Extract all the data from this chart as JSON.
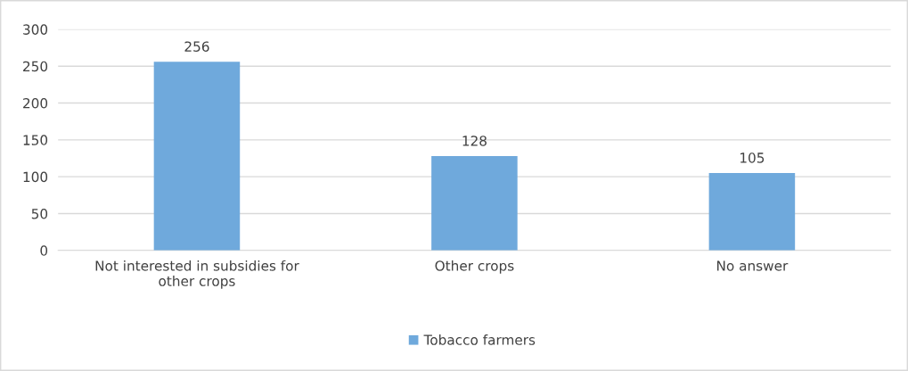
{
  "chart_data": {
    "type": "bar",
    "categories": [
      "Not interested in subsidies for other crops",
      "Other crops",
      "No answer"
    ],
    "series": [
      {
        "name": "Tobacco farmers",
        "color": "#6fa9dc",
        "values": [
          256,
          128,
          105
        ]
      }
    ],
    "ylim": [
      0,
      300
    ],
    "yticks": [
      0,
      50,
      100,
      150,
      200,
      250,
      300
    ],
    "grid": "y",
    "legend": "bottom",
    "data_labels": true
  }
}
